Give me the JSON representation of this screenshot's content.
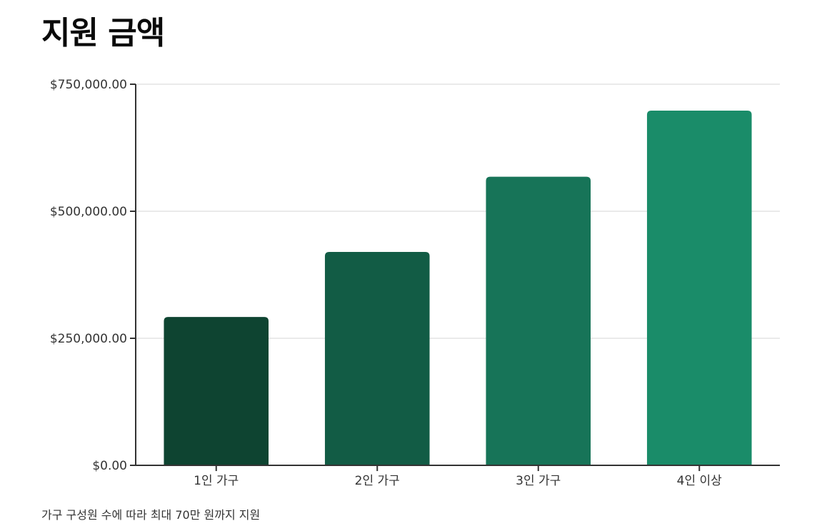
{
  "title": "지원 금액",
  "caption": "가구 구성원 수에 따라 최대 70만 원까지 지원",
  "chart_data": {
    "type": "bar",
    "title": "지원 금액",
    "xlabel": "",
    "ylabel": "",
    "categories": [
      "1인 가구",
      "2인 가구",
      "3인 가구",
      "4인 이상"
    ],
    "values": [
      292000,
      420000,
      568000,
      698000
    ],
    "colors": [
      "#0e4431",
      "#125c45",
      "#177458",
      "#1a8c69"
    ],
    "ylim": [
      0,
      750000
    ],
    "yticks": [
      0,
      250000,
      500000,
      750000
    ],
    "ytick_labels": [
      "$0.00",
      "$250,000.00",
      "$500,000.00",
      "$750,000.00"
    ],
    "grid": true,
    "legend": "none"
  }
}
